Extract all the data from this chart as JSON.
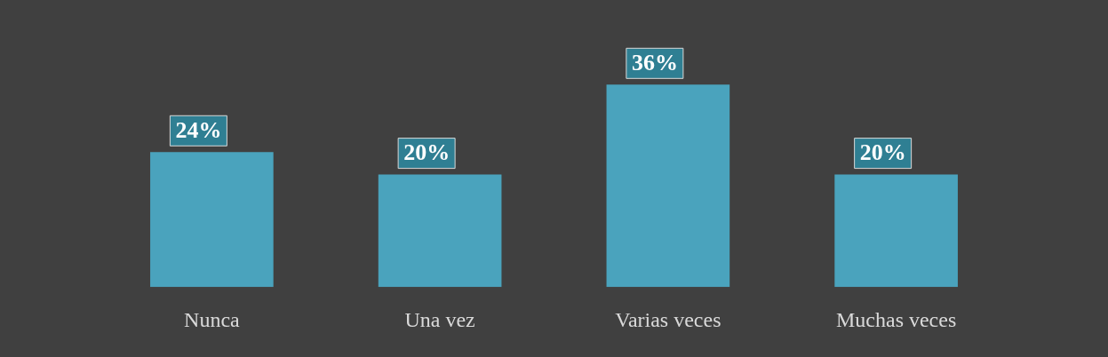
{
  "chart_data": {
    "type": "bar",
    "categories": [
      "Nunca",
      "Una vez",
      "Varias veces",
      "Muchas veces"
    ],
    "values": [
      24,
      20,
      36,
      20
    ],
    "color": "#4aa3bd",
    "value_labels": [
      "24%",
      "20%",
      "36%",
      "20%"
    ]
  }
}
